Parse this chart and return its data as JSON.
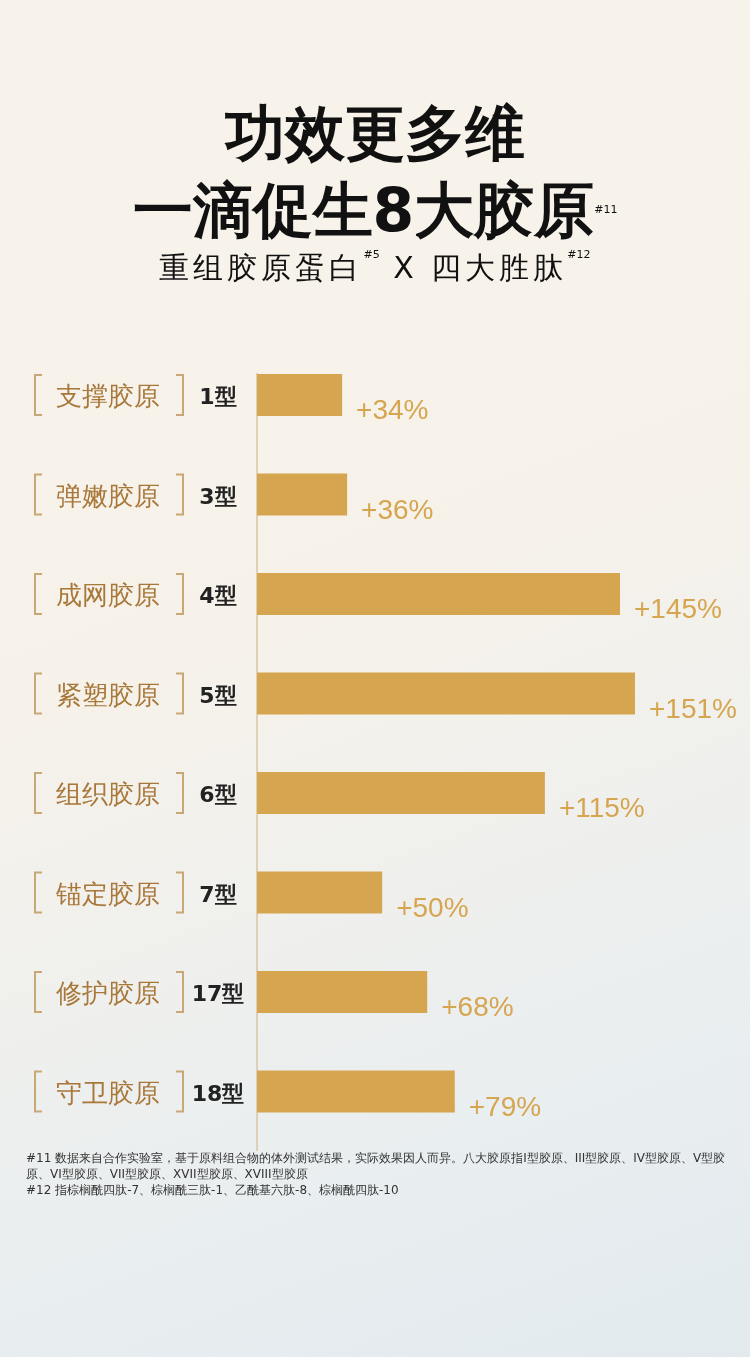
{
  "chart_data": {
    "type": "bar",
    "orientation": "horizontal",
    "title": "功效更多维",
    "subtitle": "一滴促生8大胶原$^{#11}$",
    "categories": [
      "支撑胶原 1型",
      "弹嫩胶原 3型",
      "成网胶原 4型",
      "紧塑胶原 5型",
      "组织胶原 6型",
      "锚定胶原 7型",
      "修护胶原 17型",
      "守卫胶原 18型"
    ],
    "values": [
      34,
      36,
      145,
      151,
      115,
      50,
      68,
      79
    ],
    "value_labels": [
      "+34%",
      "+36%",
      "+145%",
      "+151%",
      "+115%",
      "+50%",
      "+68%",
      "+79%"
    ],
    "color": "#d6a550",
    "annotations": [
      "重组胶原蛋白$^{#5}$ X 四大胜肽$^{#12}$",
      "#11 数据来自合作实验室，基于原料组合物的体外测试结果，实际效果因人而异。八大胶原指I型胶原、III型胶原、IV型胶原、V型胶原、VI型胶原、VII型胶原、XVII型胶原、XVIII型胶原",
      "#12 指棕榈酰四肽-7、棕榈酰三肽-1、乙酰基六肽-8、棕榈酰四肽-10"
    ]
  }
}
